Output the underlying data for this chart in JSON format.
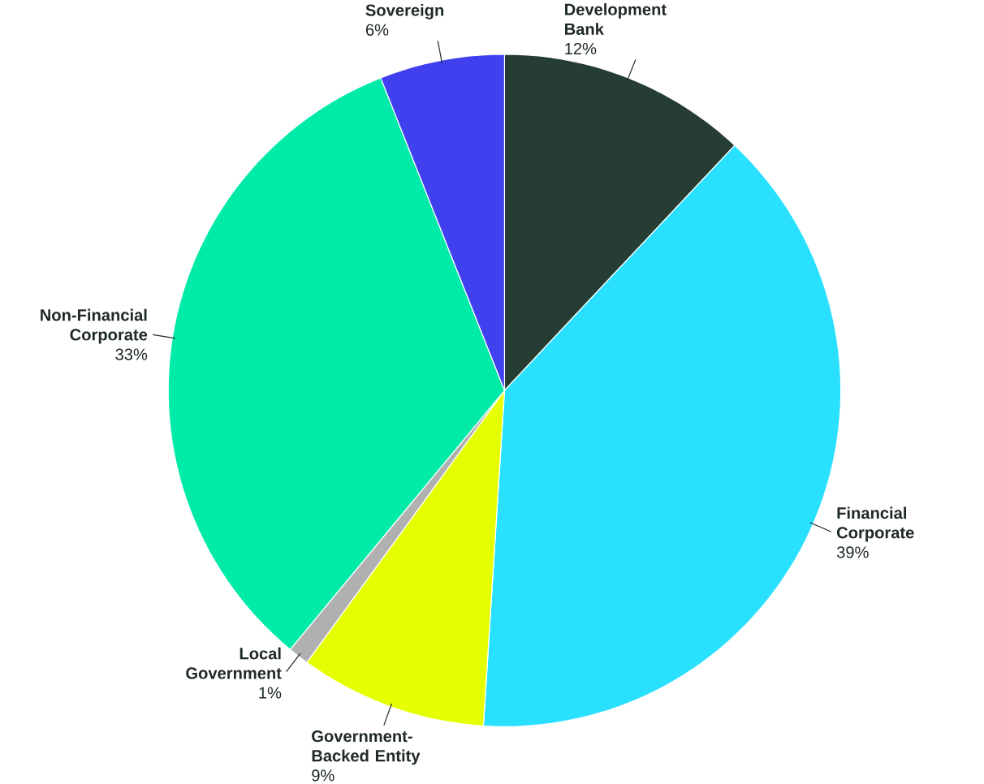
{
  "chart_data": {
    "type": "pie",
    "categories": [
      "Development Bank",
      "Financial Corporate",
      "Government-Backed Entity",
      "Local Government",
      "Non-Financial Corporate",
      "Sovereign"
    ],
    "values": [
      12,
      39,
      9,
      1,
      33,
      6
    ],
    "colors": [
      "#263d33",
      "#29e0ff",
      "#e5ff00",
      "#b0b0b0",
      "#00eba8",
      "#4040ee"
    ],
    "value_labels": [
      "12%",
      "39%",
      "9%",
      "1%",
      "33%",
      "6%"
    ]
  }
}
